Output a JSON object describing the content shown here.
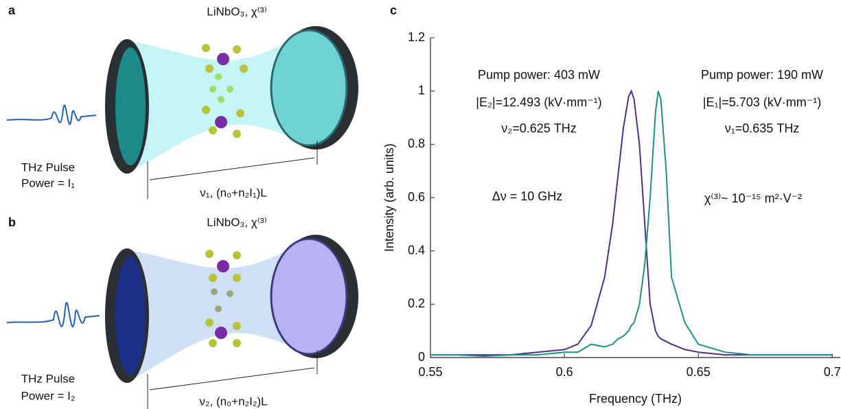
{
  "panels": {
    "a": {
      "label": "a",
      "crystal": "LiNbO₃, χ⁽³⁾",
      "pulse": "THz Pulse",
      "power": "Power = I₁",
      "cavity": "ν₁, (n₀+n₂I₁)L"
    },
    "b": {
      "label": "b",
      "crystal": "LiNbO₃, χ⁽³⁾",
      "pulse": "THz Pulse",
      "power": "Power = I₂",
      "cavity": "ν₂, (n₀+n₂I₂)L"
    },
    "c": {
      "label": "c"
    }
  },
  "chart_data": {
    "type": "line",
    "x_label": "Frequency (THz)",
    "y_label": "Intensity (arb. units)",
    "annotations": [
      "Pump power: 403 mW",
      "|E₂|=12.493 (kV·mm⁻¹)",
      "ν₂=0.625 THz",
      "Pump power: 190 mW",
      "|E₁|=5.703 (kV·mm⁻¹)",
      "ν₁=0.635 THz",
      "Δν = 10 GHz",
      "χ⁽³⁾~ 10⁻¹⁵ m²·V⁻²"
    ],
    "x": [
      0.55,
      0.56,
      0.57,
      0.58,
      0.59,
      0.6,
      0.605,
      0.61,
      0.615,
      0.618,
      0.62,
      0.622,
      0.624,
      0.625,
      0.626,
      0.628,
      0.63,
      0.632,
      0.634,
      0.635,
      0.636,
      0.638,
      0.64,
      0.645,
      0.65,
      0.66,
      0.67,
      0.68,
      0.69,
      0.7
    ],
    "series": [
      {
        "color": "#4b2f8a",
        "values": [
          0.01,
          0.01,
          0.01,
          0.01,
          0.02,
          0.03,
          0.05,
          0.12,
          0.3,
          0.5,
          0.68,
          0.86,
          0.98,
          1.0,
          0.97,
          0.8,
          0.5,
          0.2,
          0.1,
          0.08,
          0.07,
          0.06,
          0.05,
          0.03,
          0.02,
          0.01,
          0.01,
          0.01,
          0.01,
          0.01
        ]
      },
      {
        "color": "#1f8f85",
        "values": [
          0.01,
          0.01,
          0.005,
          0.01,
          0.01,
          0.02,
          0.02,
          0.05,
          0.04,
          0.05,
          0.07,
          0.08,
          0.1,
          0.12,
          0.13,
          0.2,
          0.35,
          0.6,
          0.92,
          1.0,
          0.97,
          0.7,
          0.3,
          0.13,
          0.05,
          0.02,
          0.01,
          0.01,
          0.01,
          0.01
        ]
      }
    ],
    "xlim": [
      0.55,
      0.703
    ],
    "ylim": [
      0,
      1.2
    ],
    "xticks": [
      0.55,
      0.6,
      0.65,
      0.7
    ],
    "yticks": [
      0,
      0.2,
      0.4,
      0.6,
      0.8,
      1,
      1.2
    ]
  }
}
